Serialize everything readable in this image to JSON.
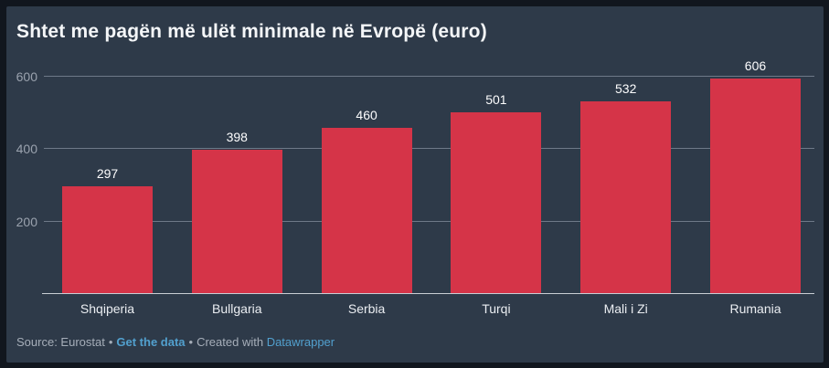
{
  "title": "Shtet me pagën më ulët minimale në Evropë (euro)",
  "chart_data": {
    "type": "bar",
    "categories": [
      "Shqiperia",
      "Bullgaria",
      "Serbia",
      "Turqi",
      "Mali i Zi",
      "Rumania"
    ],
    "values": [
      297,
      398,
      460,
      501,
      532,
      606
    ],
    "title": "Shtet me pagën më ulët minimale në Evropë (euro)",
    "xlabel": "",
    "ylabel": "",
    "ylim": [
      0,
      650
    ],
    "yticks": [
      200,
      400,
      600
    ],
    "grid": "horizontal-only",
    "legend": "none",
    "value_labels_shown": true
  },
  "footer": {
    "source_text": "Source: Eurostat",
    "separator": "•",
    "get_data_label": "Get the data",
    "created_with_text": "Created with",
    "tool_label": "Datawrapper"
  },
  "colors": {
    "frame_background": "#11161e",
    "card_background": "#2e3a49",
    "bar": "#d53448",
    "gridline": "#6e7988",
    "axis_line": "#c9ced5",
    "tick_label": "#9aa2ae",
    "title_text": "#f4f6f8",
    "footer_text": "#a6aeb9",
    "link": "#52a0ce"
  }
}
